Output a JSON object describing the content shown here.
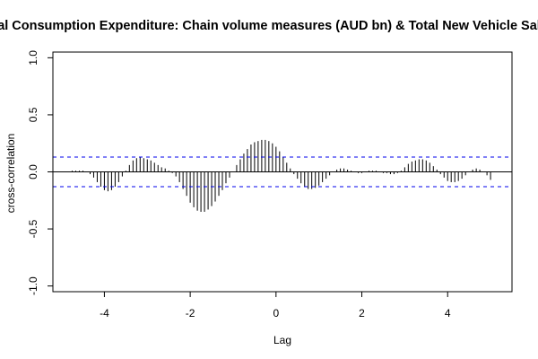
{
  "chart_data": {
    "type": "bar",
    "title": "al Consumption Expenditure: Chain volume measures (AUD bn) & Total New Vehicle Sal",
    "xlabel": "Lag",
    "ylabel": "cross-correlation",
    "xlim": [
      -5.2,
      5.5
    ],
    "ylim": [
      -1.05,
      1.05
    ],
    "xticks": [
      -4,
      -2,
      0,
      2,
      4
    ],
    "yticks": [
      -1.0,
      -0.5,
      0.0,
      0.5,
      1.0
    ],
    "ytick_labels": [
      "-1.0",
      "-0.5",
      "0.0",
      "0.5",
      "1.0"
    ],
    "confidence_band": 0.13,
    "colors": {
      "bars": "#000000",
      "confidence": "#0000ee",
      "zero_line": "#000000"
    },
    "x": [
      -5.0,
      -4.917,
      -4.833,
      -4.75,
      -4.667,
      -4.583,
      -4.5,
      -4.417,
      -4.333,
      -4.25,
      -4.167,
      -4.083,
      -4.0,
      -3.917,
      -3.833,
      -3.75,
      -3.667,
      -3.583,
      -3.5,
      -3.417,
      -3.333,
      -3.25,
      -3.167,
      -3.083,
      -3.0,
      -2.917,
      -2.833,
      -2.75,
      -2.667,
      -2.583,
      -2.5,
      -2.417,
      -2.333,
      -2.25,
      -2.167,
      -2.083,
      -2.0,
      -1.917,
      -1.833,
      -1.75,
      -1.667,
      -1.583,
      -1.5,
      -1.417,
      -1.333,
      -1.25,
      -1.167,
      -1.083,
      -1.0,
      -0.917,
      -0.833,
      -0.75,
      -0.667,
      -0.583,
      -0.5,
      -0.417,
      -0.333,
      -0.25,
      -0.167,
      -0.083,
      0.0,
      0.083,
      0.167,
      0.25,
      0.333,
      0.417,
      0.5,
      0.583,
      0.667,
      0.75,
      0.833,
      0.917,
      1.0,
      1.083,
      1.167,
      1.25,
      1.333,
      1.417,
      1.5,
      1.583,
      1.667,
      1.75,
      1.833,
      1.917,
      2.0,
      2.083,
      2.167,
      2.25,
      2.333,
      2.417,
      2.5,
      2.583,
      2.667,
      2.75,
      2.833,
      2.917,
      3.0,
      3.083,
      3.167,
      3.25,
      3.333,
      3.417,
      3.5,
      3.583,
      3.667,
      3.75,
      3.833,
      3.917,
      4.0,
      4.083,
      4.167,
      4.25,
      4.333,
      4.417,
      4.5,
      4.583,
      4.667,
      4.75,
      4.833,
      4.917,
      5.0
    ],
    "values": [
      0.0,
      0.0,
      0.0,
      0.01,
      0.01,
      0.01,
      0.01,
      0.0,
      -0.02,
      -0.05,
      -0.09,
      -0.13,
      -0.16,
      -0.17,
      -0.16,
      -0.13,
      -0.09,
      -0.04,
      0.01,
      0.06,
      0.1,
      0.12,
      0.13,
      0.12,
      0.11,
      0.1,
      0.08,
      0.06,
      0.04,
      0.03,
      0.01,
      -0.01,
      -0.04,
      -0.09,
      -0.15,
      -0.21,
      -0.27,
      -0.31,
      -0.34,
      -0.35,
      -0.35,
      -0.33,
      -0.3,
      -0.26,
      -0.21,
      -0.16,
      -0.1,
      -0.05,
      0.0,
      0.06,
      0.11,
      0.16,
      0.2,
      0.24,
      0.26,
      0.27,
      0.28,
      0.28,
      0.27,
      0.25,
      0.22,
      0.18,
      0.13,
      0.08,
      0.03,
      -0.02,
      -0.06,
      -0.1,
      -0.13,
      -0.15,
      -0.15,
      -0.14,
      -0.12,
      -0.09,
      -0.06,
      -0.03,
      0.0,
      0.02,
      0.03,
      0.03,
      0.02,
      0.01,
      0.0,
      -0.01,
      -0.01,
      0.0,
      0.01,
      0.01,
      0.01,
      0.0,
      -0.01,
      -0.01,
      -0.02,
      -0.02,
      -0.01,
      0.01,
      0.04,
      0.07,
      0.09,
      0.1,
      0.11,
      0.11,
      0.1,
      0.08,
      0.05,
      0.02,
      -0.02,
      -0.05,
      -0.08,
      -0.09,
      -0.09,
      -0.08,
      -0.06,
      -0.03,
      0.0,
      0.02,
      0.03,
      0.02,
      0.0,
      -0.03,
      -0.07
    ]
  }
}
